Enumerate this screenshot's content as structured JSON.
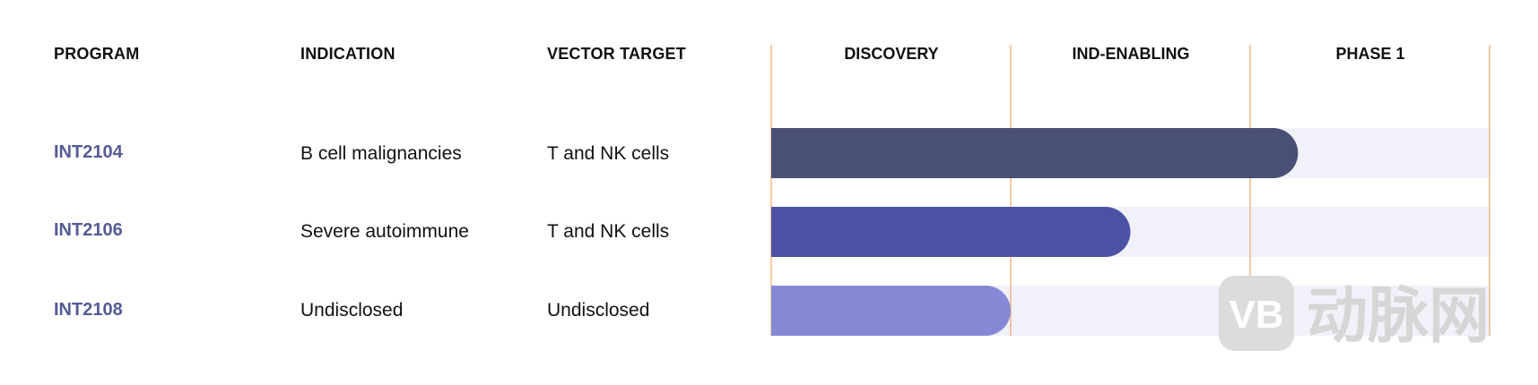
{
  "columns": {
    "program": "PROGRAM",
    "indication": "INDICATION",
    "vector_target": "VECTOR TARGET"
  },
  "watermark": "动脉网",
  "chart_data": {
    "type": "bar",
    "orientation": "horizontal",
    "categories": [
      "INT2104",
      "INT2106",
      "INT2108"
    ],
    "stages": [
      "DISCOVERY",
      "IND-ENABLING",
      "PHASE 1"
    ],
    "values": [
      2.2,
      1.5,
      1.0
    ],
    "xlim": [
      0,
      3
    ],
    "colors": [
      "#4a4f75",
      "#4b52a4",
      "#8589d5"
    ],
    "track_color": "#f1f1f9",
    "divider_color": "#f0a868",
    "program_color": "#555b95",
    "grid": true
  },
  "rows": [
    {
      "program": "INT2104",
      "indication": "B cell malignancies",
      "vector_target": "T and NK cells"
    },
    {
      "program": "INT2106",
      "indication": "Severe autoimmune",
      "vector_target": "T and NK cells"
    },
    {
      "program": "INT2108",
      "indication": "Undisclosed",
      "vector_target": "Undisclosed"
    }
  ]
}
